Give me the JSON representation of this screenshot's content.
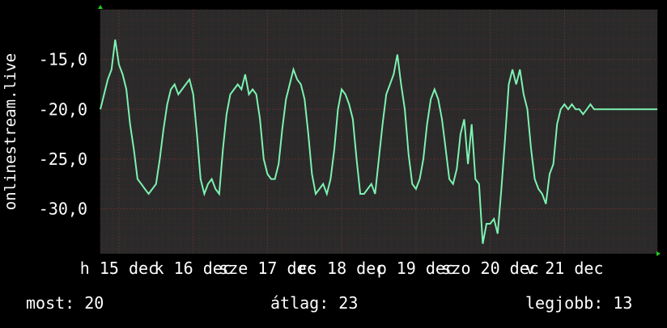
{
  "colors": {
    "background": "#000000",
    "plot_background": "#2a2a2a",
    "grid_minor": "#4a2b2b",
    "grid_major": "#5a3030",
    "line": "#7cf2b0",
    "axis_arrow": "#22cc22",
    "text": "#ffffff"
  },
  "chart_data": {
    "type": "line",
    "title": "",
    "xlabel": "",
    "ylabel": "onlinestream.live",
    "ylim": [
      -34.5,
      -10.0
    ],
    "grid": true,
    "legend": "none",
    "y_ticks": [
      {
        "value": -15.0,
        "label": "-15,0"
      },
      {
        "value": -20.0,
        "label": "-20,0"
      },
      {
        "value": -25.0,
        "label": "-25,0"
      },
      {
        "value": -30.0,
        "label": "-30,0"
      }
    ],
    "x_range": [
      14.0,
      21.5
    ],
    "x_ticks": [
      {
        "value": 14.25,
        "label": "h 15 dec"
      },
      {
        "value": 15.25,
        "label": "k 16 dec"
      },
      {
        "value": 16.25,
        "label": "sze 17 dec"
      },
      {
        "value": 17.25,
        "label": "cs 18 dec"
      },
      {
        "value": 18.25,
        "label": "p 19 dec"
      },
      {
        "value": 19.25,
        "label": "szo 20 dec"
      },
      {
        "value": 20.25,
        "label": "v 21 dec"
      }
    ],
    "series": [
      {
        "name": "",
        "x": [
          14.0,
          14.05,
          14.1,
          14.15,
          14.2,
          14.25,
          14.3,
          14.35,
          14.4,
          14.45,
          14.5,
          14.55,
          14.6,
          14.65,
          14.7,
          14.75,
          14.8,
          14.85,
          14.9,
          14.95,
          15.0,
          15.05,
          15.1,
          15.15,
          15.2,
          15.25,
          15.3,
          15.35,
          15.4,
          15.45,
          15.5,
          15.55,
          15.6,
          15.65,
          15.7,
          15.75,
          15.8,
          15.85,
          15.9,
          15.95,
          16.0,
          16.05,
          16.1,
          16.15,
          16.2,
          16.25,
          16.3,
          16.35,
          16.4,
          16.45,
          16.5,
          16.55,
          16.6,
          16.65,
          16.7,
          16.75,
          16.8,
          16.85,
          16.9,
          16.95,
          17.0,
          17.05,
          17.1,
          17.15,
          17.2,
          17.25,
          17.3,
          17.35,
          17.4,
          17.45,
          17.5,
          17.55,
          17.6,
          17.65,
          17.7,
          17.75,
          17.8,
          17.85,
          17.9,
          17.95,
          18.0,
          18.05,
          18.1,
          18.15,
          18.2,
          18.25,
          18.3,
          18.35,
          18.4,
          18.45,
          18.5,
          18.55,
          18.6,
          18.65,
          18.7,
          18.75,
          18.8,
          18.85,
          18.9,
          18.95,
          19.0,
          19.05,
          19.1,
          19.15,
          19.2,
          19.25,
          19.3,
          19.35,
          19.4,
          19.45,
          19.5,
          19.55,
          19.6,
          19.65,
          19.7,
          19.75,
          19.8,
          19.85,
          19.9,
          19.95,
          20.0,
          20.05,
          20.1,
          20.15,
          20.2,
          20.25,
          20.3,
          20.35,
          20.4,
          20.45,
          20.5,
          20.55,
          20.6,
          20.65,
          20.7,
          20.75,
          20.8,
          20.85,
          20.9,
          20.95,
          21.0,
          21.05,
          21.1,
          21.15,
          21.2,
          21.25,
          21.3,
          21.35,
          21.4,
          21.45,
          21.5
        ],
        "y": [
          -20.0,
          -18.5,
          -17.0,
          -16.0,
          -13.0,
          -15.5,
          -16.5,
          -18.0,
          -21.5,
          -24.0,
          -27.0,
          -27.5,
          -28.0,
          -28.5,
          -28.0,
          -27.5,
          -25.0,
          -22.0,
          -19.5,
          -18.0,
          -17.5,
          -18.5,
          -18.0,
          -17.5,
          -17.0,
          -18.5,
          -22.5,
          -27.0,
          -28.5,
          -27.5,
          -27.0,
          -28.0,
          -28.5,
          -24.0,
          -20.5,
          -18.5,
          -18.0,
          -17.5,
          -18.0,
          -16.5,
          -18.5,
          -18.0,
          -18.5,
          -21.0,
          -25.0,
          -26.5,
          -27.0,
          -27.0,
          -25.5,
          -22.0,
          -19.0,
          -17.5,
          -16.0,
          -17.0,
          -17.5,
          -19.0,
          -22.5,
          -26.5,
          -28.5,
          -28.0,
          -27.5,
          -28.5,
          -27.0,
          -24.0,
          -20.0,
          -18.0,
          -18.5,
          -19.5,
          -21.0,
          -25.0,
          -28.5,
          -28.5,
          -28.0,
          -27.5,
          -28.5,
          -25.0,
          -21.5,
          -18.5,
          -17.5,
          -16.5,
          -14.5,
          -17.5,
          -20.0,
          -24.5,
          -27.5,
          -28.0,
          -27.0,
          -25.0,
          -21.5,
          -19.0,
          -18.0,
          -19.0,
          -21.0,
          -24.0,
          -27.0,
          -27.5,
          -26.0,
          -22.5,
          -21.0,
          -25.5,
          -21.5,
          -27.0,
          -27.5,
          -33.5,
          -31.5,
          -31.5,
          -31.0,
          -32.5,
          -28.0,
          -23.0,
          -17.5,
          -16.0,
          -17.5,
          -16.0,
          -18.5,
          -20.0,
          -24.0,
          -27.0,
          -28.0,
          -28.5,
          -29.5,
          -26.5,
          -25.5,
          -21.5,
          -20.0,
          -19.5,
          -20.0,
          -19.5,
          -20.0,
          -20.0,
          -20.5,
          -20.0,
          -19.5,
          -20.0,
          -20.0,
          -20.0,
          -20.0,
          -20.0,
          -20.0,
          -20.0,
          -20.0,
          -20.0,
          -20.0,
          -20.0,
          -20.0,
          -20.0,
          -20.0,
          -20.0,
          -20.0,
          -20.0,
          -20.0
        ]
      }
    ]
  },
  "stats": {
    "now": "most: 20",
    "avg": "átlag: 23",
    "best": "legjobb: 13"
  }
}
